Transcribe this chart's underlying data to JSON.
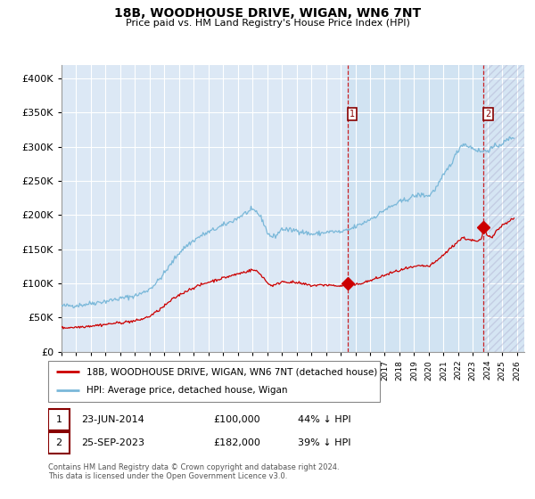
{
  "title": "18B, WOODHOUSE DRIVE, WIGAN, WN6 7NT",
  "subtitle": "Price paid vs. HM Land Registry's House Price Index (HPI)",
  "legend_line1": "18B, WOODHOUSE DRIVE, WIGAN, WN6 7NT (detached house)",
  "legend_line2": "HPI: Average price, detached house, Wigan",
  "annotation1_date": "23-JUN-2014",
  "annotation1_price": "£100,000",
  "annotation1_hpi": "44% ↓ HPI",
  "annotation2_date": "25-SEP-2023",
  "annotation2_price": "£182,000",
  "annotation2_hpi": "39% ↓ HPI",
  "footnote": "Contains HM Land Registry data © Crown copyright and database right 2024.\nThis data is licensed under the Open Government Licence v3.0.",
  "hpi_color": "#7ab8d9",
  "sale_color": "#cc0000",
  "marker_color": "#cc0000",
  "plot_bg_color": "#dce8f5",
  "ylim": [
    0,
    420000
  ],
  "xlim_start": 1995.0,
  "xlim_end": 2026.5,
  "sale1_x": 2014.47,
  "sale1_y": 100000,
  "sale2_x": 2023.73,
  "sale2_y": 182000,
  "vline1_x": 2014.47,
  "vline2_x": 2023.73
}
